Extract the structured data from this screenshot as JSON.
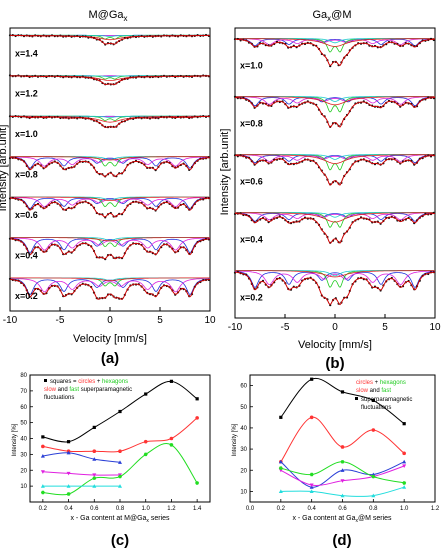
{
  "chart_data": [
    {
      "panel": "(a)",
      "type": "line",
      "title": "M@Ga",
      "title_sub": "x",
      "xlabel": "Velocity [mm/s]",
      "ylabel": "Intensity [arb.unit]",
      "xlim": [
        -10,
        10
      ],
      "xticks": [
        "-10",
        "-5",
        "0",
        "5",
        "10"
      ],
      "spectra": [
        {
          "label": "x=1.4",
          "depth": 0.35,
          "sextet": 0.1,
          "doublet": 0.5
        },
        {
          "label": "x=1.2",
          "depth": 0.35,
          "sextet": 0.1,
          "doublet": 0.4
        },
        {
          "label": "x=1.0",
          "depth": 0.45,
          "sextet": 0.15,
          "doublet": 0.4
        },
        {
          "label": "x=0.8",
          "depth": 0.8,
          "sextet": 0.75,
          "doublet": 0.45
        },
        {
          "label": "x=0.6",
          "depth": 0.8,
          "sextet": 0.75,
          "doublet": 0.45
        },
        {
          "label": "x=0.4",
          "depth": 0.85,
          "sextet": 0.8,
          "doublet": 0.35
        },
        {
          "label": "x=0.2",
          "depth": 0.85,
          "sextet": 0.85,
          "doublet": 0.3
        }
      ]
    },
    {
      "panel": "(b)",
      "type": "line",
      "title": "Ga",
      "title_sub": "x",
      "title_tail": "@M",
      "xlabel": "Velocity [mm/s]",
      "ylabel": "Intensity [arb.unit]",
      "xlim": [
        -10,
        10
      ],
      "xticks": [
        "-10",
        "-5",
        "0",
        "5",
        "10"
      ],
      "spectra": [
        {
          "label": "x=1.0",
          "depth": 0.75,
          "sextet": 0.45,
          "doublet": 0.6
        },
        {
          "label": "x=0.8",
          "depth": 0.85,
          "sextet": 0.5,
          "doublet": 0.6
        },
        {
          "label": "x=0.6",
          "depth": 0.85,
          "sextet": 0.45,
          "doublet": 0.6
        },
        {
          "label": "x=0.4",
          "depth": 0.85,
          "sextet": 0.45,
          "doublet": 0.55
        },
        {
          "label": "x=0.2",
          "depth": 0.95,
          "sextet": 0.7,
          "doublet": 0.5
        }
      ]
    },
    {
      "panel": "(c)",
      "type": "scatter",
      "xlabel": "x - Ga content at M@Ga",
      "xlabel_sub": "x",
      "xlabel_tail": " series",
      "ylabel": "Intensity [%]",
      "xlim": [
        0.1,
        1.5
      ],
      "ylim": [
        0,
        80
      ],
      "xticks": [
        "0.2",
        "0.4",
        "0.6",
        "0.8",
        "1.0",
        "1.2",
        "1.4"
      ],
      "yticks": [
        "10",
        "20",
        "30",
        "40",
        "50",
        "60",
        "70",
        "80"
      ],
      "legend": {
        "t1": "squares = ",
        "t2": "circles",
        "t3": " + ",
        "t4": "hexagons",
        "t5": "slow",
        "t6": " and ",
        "t7": "fast",
        "t8": " superparamagnetic",
        "t9": "fluctuations"
      },
      "series": [
        {
          "color": "#000000",
          "marker": "square",
          "x": [
            0.2,
            0.4,
            0.6,
            0.8,
            1.0,
            1.2,
            1.4
          ],
          "y": [
            41,
            38,
            47,
            57,
            68,
            76,
            65
          ]
        },
        {
          "color": "#ff3333",
          "marker": "circle",
          "x": [
            0.2,
            0.4,
            0.6,
            0.8,
            1.0,
            1.2,
            1.4
          ],
          "y": [
            35,
            32,
            32,
            32,
            38,
            40,
            53
          ]
        },
        {
          "color": "#2a3fd6",
          "marker": "triangle",
          "x": [
            0.2,
            0.4,
            0.6,
            0.8
          ],
          "y": [
            29,
            31,
            27,
            25
          ]
        },
        {
          "color": "#e020e0",
          "marker": "triangle-down",
          "x": [
            0.2,
            0.4,
            0.6,
            0.8
          ],
          "y": [
            19,
            18,
            17,
            17
          ]
        },
        {
          "color": "#22dd22",
          "marker": "hexagon",
          "x": [
            0.2,
            0.4,
            0.6,
            0.8,
            1.0,
            1.2,
            1.4
          ],
          "y": [
            6,
            5,
            15,
            16,
            30,
            36,
            12
          ]
        },
        {
          "color": "#22dddd",
          "marker": "triangle",
          "x": [
            0.2,
            0.4,
            0.6,
            0.8
          ],
          "y": [
            10,
            10,
            10,
            10
          ]
        }
      ]
    },
    {
      "panel": "(d)",
      "type": "scatter",
      "xlabel": "x - Ga content at Ga",
      "xlabel_sub": "x",
      "xlabel_tail": "@M series",
      "ylabel": "Intensity [%]",
      "xlim": [
        0,
        1.2
      ],
      "ylim": [
        5,
        65
      ],
      "xticks": [
        "0.0",
        "0.2",
        "0.4",
        "0.6",
        "0.8",
        "1.0",
        "1.2"
      ],
      "yticks": [
        "10",
        "20",
        "30",
        "40",
        "50",
        "60"
      ],
      "legend": {
        "t1": "circles",
        "t2": " + ",
        "t3": "hexagons",
        "t4": "slow",
        "t5": " and ",
        "t6": "fast",
        "t7": "superparamagnetic",
        "t8": "fluctuations"
      },
      "series": [
        {
          "color": "#000000",
          "marker": "square",
          "x": [
            0.2,
            0.4,
            0.6,
            0.8,
            1.0
          ],
          "y": [
            45,
            63,
            57,
            53,
            42
          ]
        },
        {
          "color": "#ff3333",
          "marker": "circle",
          "x": [
            0.2,
            0.4,
            0.6,
            0.8,
            1.0
          ],
          "y": [
            24,
            45,
            31,
            39,
            28
          ]
        },
        {
          "color": "#2a3fd6",
          "marker": "triangle",
          "x": [
            0.2,
            0.4,
            0.6,
            0.8,
            1.0
          ],
          "y": [
            24,
            12,
            20,
            18,
            24
          ]
        },
        {
          "color": "#e020e0",
          "marker": "triangle-down",
          "x": [
            0.2,
            0.4,
            0.6,
            0.8,
            1.0
          ],
          "y": [
            20,
            13,
            15,
            17,
            22
          ]
        },
        {
          "color": "#22dd22",
          "marker": "hexagon",
          "x": [
            0.2,
            0.4,
            0.6,
            0.8,
            1.0
          ],
          "y": [
            21,
            18,
            24,
            17,
            14
          ]
        },
        {
          "color": "#22dddd",
          "marker": "triangle",
          "x": [
            0.2,
            0.4,
            0.6,
            0.8,
            1.0
          ],
          "y": [
            10,
            10,
            8,
            8,
            12
          ]
        }
      ]
    }
  ]
}
